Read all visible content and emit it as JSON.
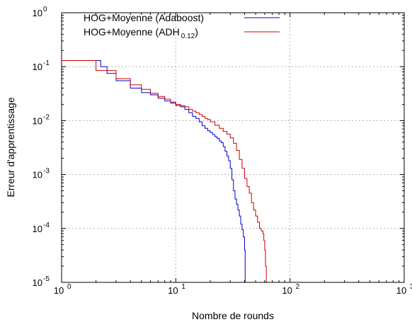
{
  "chart_data": {
    "type": "line",
    "xscale": "log",
    "yscale": "log",
    "xlim": [
      1,
      1000
    ],
    "ylim": [
      1e-05,
      1
    ],
    "xlabel": "Nombre de rounds",
    "ylabel": "Erreur d'apprentissage",
    "grid": true,
    "legend_position": "top-left",
    "x_ticks": [
      {
        "value": 1,
        "base": "10",
        "exp": "0"
      },
      {
        "value": 10,
        "base": "10",
        "exp": "1"
      },
      {
        "value": 100,
        "base": "10",
        "exp": "2"
      },
      {
        "value": 1000,
        "base": "10",
        "exp": "3"
      }
    ],
    "y_ticks": [
      {
        "value": 1,
        "base": "10",
        "exp": "0"
      },
      {
        "value": 0.1,
        "base": "10",
        "exp": "-1"
      },
      {
        "value": 0.01,
        "base": "10",
        "exp": "-2"
      },
      {
        "value": 0.001,
        "base": "10",
        "exp": "-3"
      },
      {
        "value": 0.0001,
        "base": "10",
        "exp": "-4"
      },
      {
        "value": 1e-05,
        "base": "10",
        "exp": "-5"
      }
    ],
    "series": [
      {
        "name": "HOG+Moyenne (Adaboost)",
        "legend_main": "HOG+Moyenne (Adaboost)",
        "legend_sub": "",
        "legend_tail": "",
        "color": "#0000cc",
        "x": [
          1,
          2,
          2.2,
          2.5,
          3,
          4,
          5,
          6,
          7,
          8,
          9,
          10,
          11,
          12,
          13,
          14,
          15,
          16,
          17,
          18,
          19,
          20,
          21,
          22,
          23,
          24,
          25,
          26,
          27,
          28,
          29,
          30,
          31,
          32,
          33,
          34,
          35,
          36,
          37,
          38,
          39,
          40,
          40.5
        ],
        "y": [
          0.13,
          0.13,
          0.1,
          0.075,
          0.055,
          0.04,
          0.033,
          0.03,
          0.026,
          0.023,
          0.021,
          0.019,
          0.018,
          0.016,
          0.014,
          0.012,
          0.011,
          0.0095,
          0.008,
          0.0072,
          0.0065,
          0.006,
          0.0055,
          0.005,
          0.0047,
          0.0042,
          0.0039,
          0.0033,
          0.0027,
          0.0022,
          0.0018,
          0.0013,
          0.0008,
          0.0005,
          0.00035,
          0.00028,
          0.00022,
          0.00017,
          0.00012,
          9.5e-05,
          7e-05,
          4e-05,
          1e-05
        ]
      },
      {
        "name": "HOG+Moyenne (ADH0.12)",
        "legend_main": "HOG+Moyenne  (ADH",
        "legend_sub": "0.12",
        "legend_tail": ")",
        "color": "#cc0000",
        "x": [
          1,
          2,
          3,
          4,
          5,
          6,
          7,
          8,
          9,
          10,
          11,
          12,
          13,
          14,
          15,
          16,
          17,
          18,
          19,
          20,
          22,
          24,
          26,
          28,
          30,
          32,
          34,
          36,
          38,
          40,
          42,
          44,
          46,
          48,
          50,
          52,
          54,
          56,
          58,
          59,
          60,
          61,
          62
        ],
        "y": [
          0.13,
          0.085,
          0.06,
          0.046,
          0.038,
          0.032,
          0.028,
          0.025,
          0.022,
          0.02,
          0.019,
          0.018,
          0.016,
          0.015,
          0.014,
          0.013,
          0.012,
          0.011,
          0.0105,
          0.0095,
          0.0082,
          0.0072,
          0.0063,
          0.0056,
          0.0048,
          0.0038,
          0.0028,
          0.0019,
          0.0013,
          0.00085,
          0.0006,
          0.00045,
          0.0003,
          0.00022,
          0.00017,
          0.00013,
          0.0001,
          9e-05,
          8e-05,
          6e-05,
          4e-05,
          2e-05,
          1e-05
        ]
      }
    ]
  }
}
